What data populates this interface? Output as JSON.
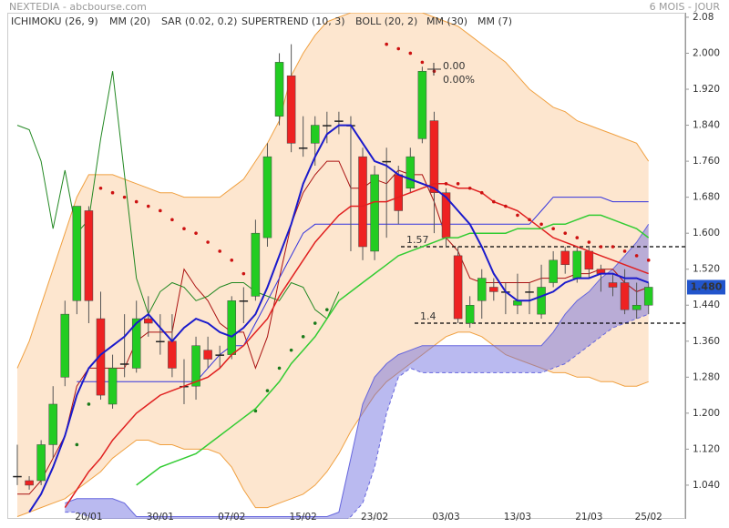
{
  "chart_data": {
    "type": "candlestick",
    "title": "NEXTEDIA - abcbourse.com",
    "subtitle": "6 MOIS - JOUR",
    "categories": [
      null,
      null,
      null,
      null,
      null,
      null,
      "20/01",
      null,
      null,
      null,
      null,
      null,
      "30/01",
      null,
      null,
      null,
      null,
      null,
      "07/02",
      null,
      null,
      null,
      null,
      null,
      "15/02",
      null,
      null,
      null,
      null,
      null,
      "23/02",
      null,
      null,
      null,
      null,
      null,
      "03/03",
      null,
      null,
      null,
      null,
      null,
      "13/03",
      null,
      null,
      null,
      null,
      null,
      "21/03",
      null,
      null,
      null,
      null,
      "25/02"
    ],
    "open": [
      1.06,
      1.05,
      1.05,
      1.13,
      1.28,
      1.45,
      1.65,
      1.41,
      1.22,
      1.31,
      1.3,
      1.41,
      1.36,
      1.36,
      1.26,
      1.26,
      1.34,
      1.33,
      1.33,
      1.45,
      1.46,
      1.59,
      1.86,
      1.95,
      1.79,
      1.8,
      1.84,
      1.85,
      1.84,
      1.77,
      1.56,
      1.76,
      1.73,
      1.7,
      1.81,
      1.85,
      1.69,
      1.55,
      1.4,
      1.45,
      1.48,
      1.47,
      1.44,
      1.47,
      1.42,
      1.49,
      1.56,
      1.5,
      1.56,
      1.52,
      1.49,
      1.49,
      1.43,
      1.44
    ],
    "high": [
      1.13,
      1.06,
      1.14,
      1.26,
      1.45,
      1.66,
      1.66,
      1.47,
      1.33,
      1.42,
      1.45,
      1.46,
      1.42,
      1.42,
      1.32,
      1.37,
      1.37,
      1.35,
      1.46,
      1.48,
      1.63,
      1.8,
      2.0,
      2.02,
      1.86,
      1.86,
      1.87,
      1.87,
      1.86,
      1.79,
      1.75,
      1.79,
      1.75,
      1.79,
      1.97,
      1.87,
      1.7,
      1.57,
      1.46,
      1.52,
      1.5,
      1.49,
      1.51,
      1.49,
      1.53,
      1.56,
      1.57,
      1.57,
      1.57,
      1.53,
      1.51,
      1.52,
      1.49,
      1.49
    ],
    "low": [
      1.04,
      1.03,
      1.04,
      1.1,
      1.26,
      1.42,
      1.4,
      1.23,
      1.21,
      1.28,
      1.29,
      1.37,
      1.33,
      1.28,
      1.22,
      1.23,
      1.3,
      1.3,
      1.32,
      1.4,
      1.45,
      1.57,
      1.84,
      1.78,
      1.77,
      1.75,
      1.8,
      1.82,
      1.56,
      1.54,
      1.54,
      1.59,
      1.62,
      1.69,
      1.8,
      1.6,
      1.57,
      1.4,
      1.39,
      1.41,
      1.45,
      1.42,
      1.42,
      1.42,
      1.41,
      1.48,
      1.51,
      1.49,
      1.5,
      1.47,
      1.46,
      1.42,
      1.41,
      1.42
    ],
    "close": [
      1.06,
      1.04,
      1.13,
      1.22,
      1.42,
      1.66,
      1.45,
      1.24,
      1.3,
      1.31,
      1.41,
      1.4,
      1.36,
      1.3,
      1.26,
      1.35,
      1.32,
      1.33,
      1.45,
      1.45,
      1.6,
      1.77,
      1.98,
      1.8,
      1.79,
      1.84,
      1.84,
      1.85,
      1.84,
      1.57,
      1.73,
      1.76,
      1.65,
      1.77,
      1.96,
      1.69,
      1.59,
      1.41,
      1.44,
      1.5,
      1.47,
      1.47,
      1.45,
      1.47,
      1.48,
      1.54,
      1.53,
      1.56,
      1.52,
      1.51,
      1.48,
      1.43,
      1.44,
      1.48
    ],
    "up_color": "#22cc22",
    "down_color": "#ee2222",
    "doji_color": "#222222",
    "series": [
      {
        "name": "ICHIMOKU (26, 9)",
        "color": "#3333cc",
        "tenkan_color": "#aa1111",
        "kijun_color": "#3333dd",
        "chikou_color": "#228822",
        "cloud_color": "#6666dd",
        "tenkan": [
          1.02,
          1.02,
          1.05,
          1.1,
          1.15,
          1.26,
          1.3,
          1.3,
          1.3,
          1.3,
          1.36,
          1.38,
          1.38,
          1.38,
          1.52,
          1.48,
          1.45,
          1.4,
          1.38,
          1.38,
          1.3,
          1.37,
          1.5,
          1.62,
          1.69,
          1.73,
          1.76,
          1.76,
          1.7,
          1.7,
          1.72,
          1.71,
          1.74,
          1.73,
          1.73,
          1.67,
          1.59,
          1.56,
          1.5,
          1.49,
          1.49,
          1.49,
          1.49,
          1.49,
          1.5,
          1.5,
          1.5,
          1.51,
          1.51,
          1.52,
          1.52,
          1.49,
          1.47,
          1.48
        ],
        "kijun": [
          null,
          null,
          null,
          null,
          null,
          1.27,
          1.27,
          1.27,
          1.27,
          1.27,
          1.27,
          1.27,
          1.27,
          1.27,
          1.27,
          1.27,
          1.3,
          1.33,
          1.35,
          1.35,
          1.4,
          1.45,
          1.5,
          1.55,
          1.6,
          1.62,
          1.62,
          1.62,
          1.62,
          1.62,
          1.62,
          1.62,
          1.62,
          1.62,
          1.62,
          1.62,
          1.62,
          1.62,
          1.62,
          1.62,
          1.62,
          1.62,
          1.62,
          1.62,
          1.65,
          1.68,
          1.68,
          1.68,
          1.68,
          1.68,
          1.67,
          1.67,
          1.67,
          1.67
        ],
        "chikou": [
          1.84,
          1.83,
          1.76,
          1.61,
          1.74,
          1.6,
          1.63,
          1.81,
          1.96,
          1.73,
          1.5,
          1.42,
          1.47,
          1.49,
          1.48,
          1.45,
          1.46,
          1.48,
          1.49,
          1.49,
          1.47,
          1.46,
          1.45,
          1.49,
          1.48,
          1.43,
          1.41,
          1.47,
          null,
          null,
          null,
          null,
          null,
          null,
          null,
          null,
          null,
          null,
          null,
          null,
          null,
          null,
          null,
          null,
          null,
          null,
          null,
          null,
          null,
          null,
          null,
          null,
          null,
          null
        ],
        "span_a": [
          null,
          null,
          null,
          null,
          1.0,
          1.01,
          1.01,
          1.01,
          1.01,
          1.0,
          0.97,
          0.97,
          0.97,
          0.97,
          0.97,
          0.97,
          0.97,
          0.97,
          0.97,
          0.97,
          0.97,
          0.97,
          0.97,
          0.97,
          0.97,
          0.97,
          0.97,
          0.98,
          1.1,
          1.22,
          1.28,
          1.31,
          1.33,
          1.34,
          1.35,
          1.35,
          1.35,
          1.35,
          1.35,
          1.35,
          1.35,
          1.35,
          1.35,
          1.35,
          1.35,
          1.38,
          1.42,
          1.45,
          1.47,
          1.5,
          1.52,
          1.55,
          1.58,
          1.62
        ],
        "span_b": [
          null,
          null,
          null,
          null,
          0.98,
          0.98,
          0.97,
          0.96,
          0.96,
          0.96,
          0.94,
          0.94,
          0.94,
          0.94,
          0.94,
          0.94,
          0.94,
          0.94,
          0.94,
          0.94,
          0.94,
          0.94,
          0.94,
          0.94,
          0.94,
          0.94,
          0.94,
          0.95,
          0.97,
          1.0,
          1.08,
          1.2,
          1.28,
          1.3,
          1.29,
          1.29,
          1.29,
          1.29,
          1.29,
          1.29,
          1.29,
          1.29,
          1.29,
          1.29,
          1.29,
          1.3,
          1.31,
          1.33,
          1.35,
          1.37,
          1.39,
          1.4,
          1.41,
          1.42
        ]
      },
      {
        "name": "MM (20)",
        "color": "#e02020",
        "style": "line",
        "values": [
          null,
          null,
          null,
          null,
          0.99,
          1.03,
          1.07,
          1.1,
          1.14,
          1.17,
          1.2,
          1.22,
          1.24,
          1.25,
          1.26,
          1.27,
          1.28,
          1.3,
          1.33,
          1.35,
          1.38,
          1.41,
          1.46,
          1.5,
          1.54,
          1.58,
          1.61,
          1.64,
          1.66,
          1.66,
          1.67,
          1.67,
          1.68,
          1.69,
          1.7,
          1.71,
          1.71,
          1.7,
          1.7,
          1.69,
          1.67,
          1.66,
          1.65,
          1.63,
          1.61,
          1.59,
          1.58,
          1.57,
          1.56,
          1.55,
          1.54,
          1.53,
          1.52,
          1.51
        ]
      },
      {
        "name": "SAR (0.02, 0.2)",
        "color": "#cc1111",
        "style": "dots",
        "values": [
          null,
          null,
          null,
          null,
          null,
          null,
          null,
          1.7,
          1.69,
          1.68,
          1.67,
          1.66,
          1.65,
          1.63,
          1.61,
          1.6,
          1.58,
          1.56,
          1.54,
          1.51,
          null,
          null,
          null,
          null,
          null,
          null,
          null,
          null,
          null,
          null,
          null,
          2.02,
          2.01,
          2.0,
          1.98,
          1.96,
          1.71,
          1.71,
          1.7,
          1.69,
          1.67,
          1.66,
          1.64,
          1.63,
          1.62,
          1.61,
          1.6,
          1.59,
          1.58,
          1.57,
          1.57,
          1.56,
          1.55,
          1.54
        ]
      },
      {
        "name": "SUPERTREND (10, 3)",
        "color": "#1a7a1a",
        "style": "dots",
        "values": [
          null,
          null,
          null,
          null,
          null,
          1.13,
          1.22,
          null,
          null,
          null,
          null,
          null,
          null,
          null,
          null,
          null,
          null,
          null,
          null,
          null,
          1.205,
          1.25,
          1.3,
          1.34,
          1.37,
          1.4,
          1.43,
          null,
          null,
          null,
          null,
          null,
          null,
          null,
          null,
          null,
          null,
          null,
          null,
          null,
          null,
          null,
          null,
          null,
          null,
          null,
          null,
          null,
          null,
          null,
          null,
          null,
          null,
          null
        ]
      },
      {
        "name": "BOLL (20, 2)",
        "color": "#f0a040",
        "fill": "#fde6cf",
        "upper": [
          1.3,
          1.36,
          1.44,
          1.52,
          1.6,
          1.68,
          1.73,
          1.73,
          1.73,
          1.72,
          1.71,
          1.7,
          1.69,
          1.69,
          1.68,
          1.68,
          1.68,
          1.68,
          1.7,
          1.72,
          1.76,
          1.8,
          1.85,
          1.95,
          2.0,
          2.04,
          2.07,
          2.08,
          2.09,
          2.09,
          2.09,
          2.09,
          2.09,
          2.09,
          2.09,
          2.08,
          2.07,
          2.06,
          2.04,
          2.02,
          2.0,
          1.98,
          1.95,
          1.92,
          1.9,
          1.88,
          1.87,
          1.85,
          1.84,
          1.83,
          1.82,
          1.81,
          1.8,
          1.76
        ],
        "lower": [
          0.97,
          0.98,
          0.99,
          1.0,
          1.01,
          1.03,
          1.05,
          1.07,
          1.1,
          1.12,
          1.14,
          1.14,
          1.13,
          1.13,
          1.12,
          1.12,
          1.12,
          1.11,
          1.08,
          1.03,
          0.99,
          0.99,
          1.0,
          1.01,
          1.02,
          1.04,
          1.07,
          1.11,
          1.16,
          1.2,
          1.24,
          1.27,
          1.29,
          1.31,
          1.33,
          1.35,
          1.37,
          1.38,
          1.38,
          1.37,
          1.35,
          1.33,
          1.32,
          1.31,
          1.3,
          1.29,
          1.29,
          1.28,
          1.28,
          1.27,
          1.27,
          1.26,
          1.26,
          1.27
        ]
      },
      {
        "name": "MM (30)",
        "color": "#33cc33",
        "style": "line",
        "values": [
          null,
          null,
          null,
          null,
          null,
          null,
          null,
          null,
          null,
          null,
          1.04,
          1.06,
          1.08,
          1.09,
          1.1,
          1.11,
          1.13,
          1.15,
          1.17,
          1.19,
          1.21,
          1.24,
          1.27,
          1.31,
          1.34,
          1.37,
          1.41,
          1.45,
          1.47,
          1.49,
          1.51,
          1.53,
          1.55,
          1.56,
          1.57,
          1.58,
          1.59,
          1.59,
          1.6,
          1.6,
          1.6,
          1.6,
          1.61,
          1.61,
          1.61,
          1.62,
          1.62,
          1.63,
          1.64,
          1.64,
          1.63,
          1.62,
          1.61,
          1.59
        ]
      },
      {
        "name": "MM (7)",
        "color": "#1a1acc",
        "style": "line",
        "width": 2,
        "values": [
          null,
          0.98,
          1.02,
          1.08,
          1.15,
          1.24,
          1.3,
          1.33,
          1.35,
          1.37,
          1.4,
          1.42,
          1.39,
          1.36,
          1.39,
          1.41,
          1.4,
          1.38,
          1.37,
          1.39,
          1.42,
          1.48,
          1.55,
          1.62,
          1.71,
          1.77,
          1.82,
          1.84,
          1.84,
          1.8,
          1.76,
          1.75,
          1.73,
          1.72,
          1.71,
          1.7,
          1.68,
          1.65,
          1.62,
          1.57,
          1.51,
          1.47,
          1.45,
          1.45,
          1.46,
          1.47,
          1.49,
          1.5,
          1.5,
          1.51,
          1.51,
          1.5,
          1.5,
          1.49
        ]
      }
    ],
    "levels": [
      1.57,
      1.4
    ],
    "last_price": {
      "value": 1.48,
      "label": "1.480"
    },
    "last_price_color": "#2255cc",
    "annotation": [
      "0.00",
      "0.00%"
    ],
    "ylim": [
      0.965,
      2.09
    ],
    "yticks": [
      2.08,
      {
        "value": 2.0,
        "label": "2.000"
      },
      {
        "value": 1.92,
        "label": "1.920"
      },
      {
        "value": 1.84,
        "label": "1.840"
      },
      {
        "value": 1.76,
        "label": "1.760"
      },
      {
        "value": 1.68,
        "label": "1.680"
      },
      {
        "value": 1.6,
        "label": "1.600"
      },
      {
        "value": 1.52,
        "label": "1.520"
      },
      {
        "value": 1.44,
        "label": "1.440"
      },
      {
        "value": 1.36,
        "label": "1.360"
      },
      {
        "value": 1.28,
        "label": "1.280"
      },
      {
        "value": 1.2,
        "label": "1.200"
      },
      {
        "value": 1.12,
        "label": "1.120"
      },
      {
        "value": 1.04,
        "label": "1.040"
      }
    ]
  }
}
